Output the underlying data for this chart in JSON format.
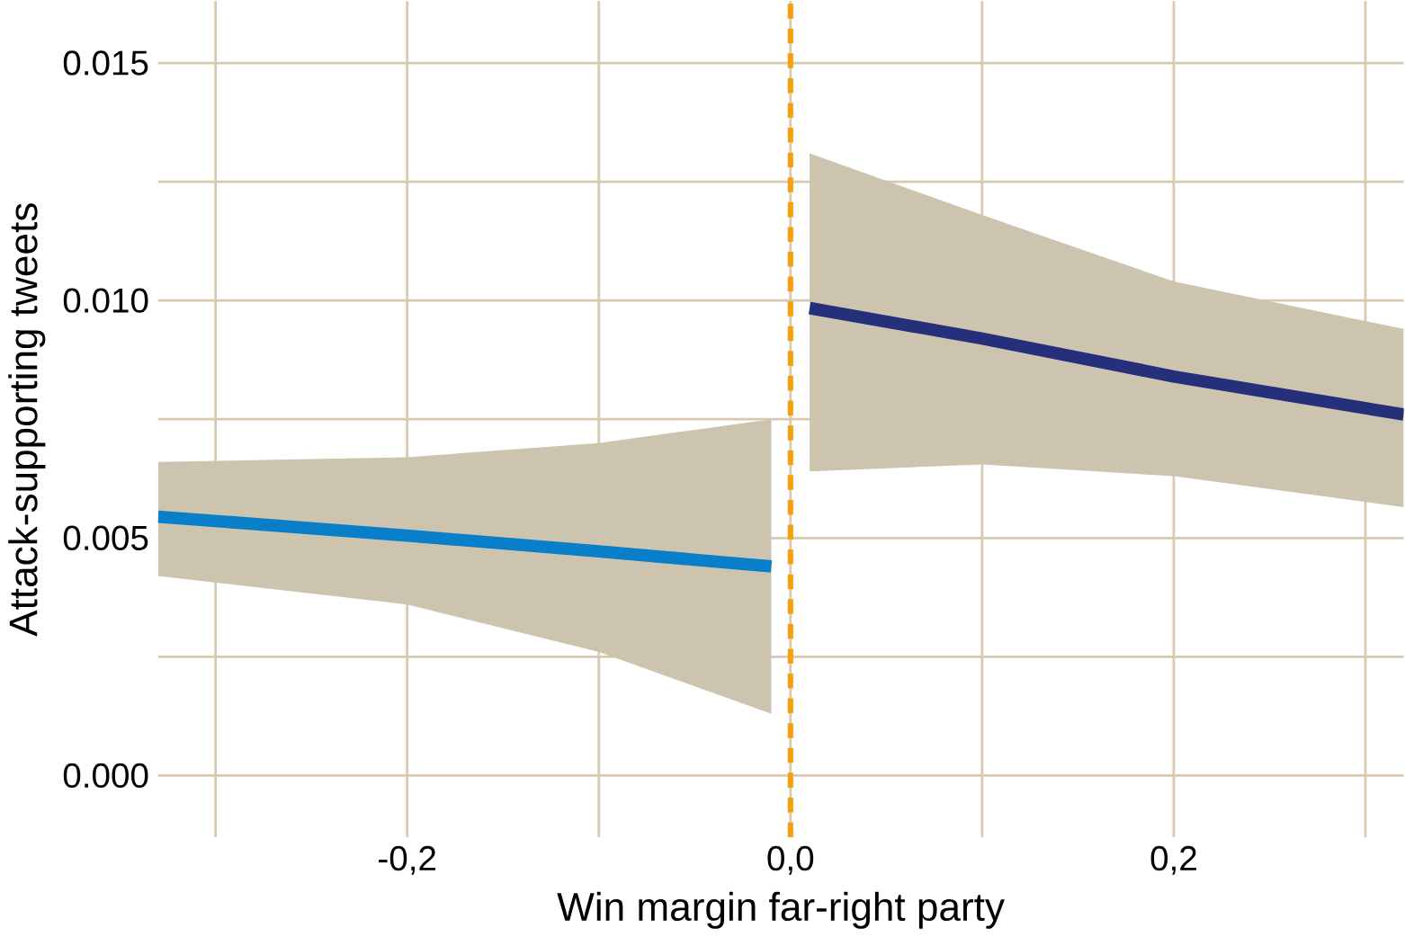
{
  "chart_data": {
    "type": "line",
    "xlabel": "Win margin far-right party",
    "ylabel": "Attack-supporting tweets",
    "xlim": [
      -0.33,
      0.32
    ],
    "ylim": [
      -0.0013,
      0.0163
    ],
    "xticks": [
      {
        "value": -0.3,
        "label": null
      },
      {
        "value": -0.2,
        "label": "-0,2"
      },
      {
        "value": -0.1,
        "label": null
      },
      {
        "value": 0.0,
        "label": "0,0"
      },
      {
        "value": 0.1,
        "label": null
      },
      {
        "value": 0.2,
        "label": "0,2"
      },
      {
        "value": 0.3,
        "label": null
      }
    ],
    "yticks": [
      {
        "value": 0.0,
        "label": "0.000"
      },
      {
        "value": 0.0025,
        "label": null
      },
      {
        "value": 0.005,
        "label": "0.005"
      },
      {
        "value": 0.0075,
        "label": null
      },
      {
        "value": 0.01,
        "label": "0.010"
      },
      {
        "value": 0.0125,
        "label": null
      },
      {
        "value": 0.015,
        "label": "0.015"
      }
    ],
    "grid": true,
    "marker": "none",
    "line_style": "solid",
    "series": [
      {
        "color": "#0a7fc9",
        "x": [
          -0.33,
          -0.2,
          -0.1,
          -0.01
        ],
        "values": [
          0.00545,
          0.00505,
          0.00472,
          0.0044
        ],
        "lower": [
          0.0042,
          0.0036,
          0.0026,
          0.0013
        ],
        "upper": [
          0.0066,
          0.0067,
          0.007,
          0.0075
        ]
      },
      {
        "color": "#262f7a",
        "x": [
          0.01,
          0.1,
          0.2,
          0.32
        ],
        "values": [
          0.00984,
          0.0092,
          0.0084,
          0.0076
        ],
        "lower": [
          0.0064,
          0.00655,
          0.0063,
          0.00565
        ],
        "upper": [
          0.0131,
          0.0118,
          0.0104,
          0.0094
        ]
      }
    ],
    "ref_lines": [
      {
        "axis": "x",
        "value": 0.0,
        "color": "#f5a00f",
        "line_style": "dashed"
      }
    ]
  }
}
